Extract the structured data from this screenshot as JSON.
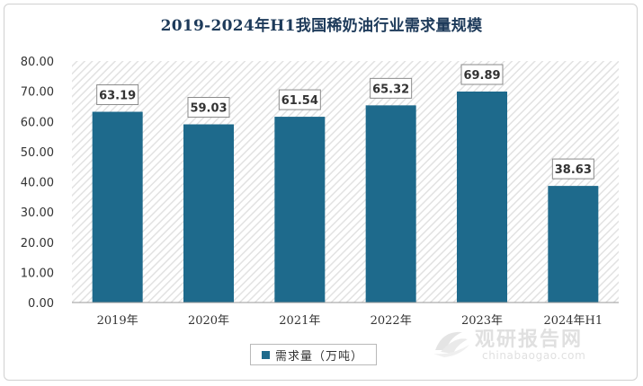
{
  "chart_data": {
    "type": "bar",
    "title": "2019-2024年H1我国稀奶油行业需求量规模",
    "categories": [
      "2019年",
      "2020年",
      "2021年",
      "2022年",
      "2023年",
      "2024年H1"
    ],
    "series": [
      {
        "name": "需求量（万吨）",
        "values": [
          63.19,
          59.03,
          61.54,
          65.32,
          69.89,
          38.63
        ],
        "data_labels": [
          "63.19",
          "59.03",
          "61.54",
          "65.32",
          "69.89",
          "38.63"
        ]
      }
    ],
    "y_ticks": [
      "0.00",
      "10.00",
      "20.00",
      "30.00",
      "40.00",
      "50.00",
      "60.00",
      "70.00",
      "80.00"
    ],
    "ylim": [
      0,
      80
    ],
    "grid": false,
    "legend_position": "bottom",
    "bar_color": "#1e6a8c",
    "plot_background": "hatched light gray"
  },
  "watermark": {
    "brand": "观研报告网",
    "url": "chinabaogao.com"
  }
}
